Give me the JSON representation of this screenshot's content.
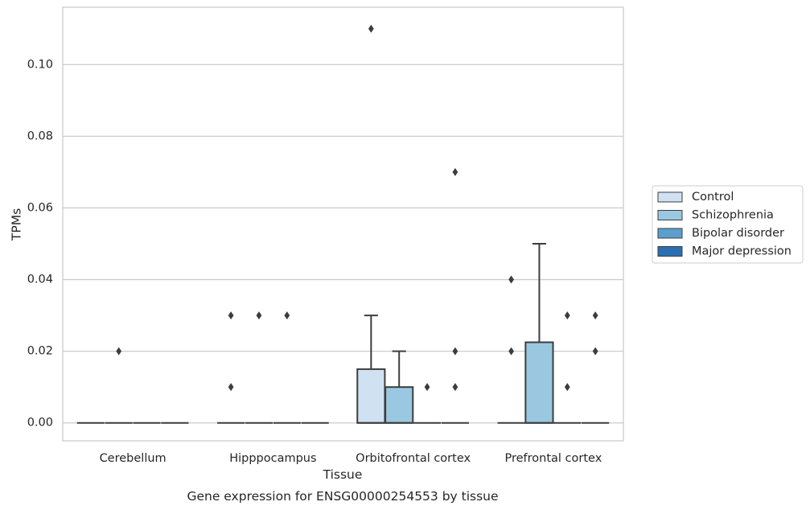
{
  "chart_data": {
    "type": "box",
    "title": "",
    "caption": "Gene expression for ENSG00000254553 by tissue",
    "xlabel": "Tissue",
    "ylabel": "TPMs",
    "ylim": [
      -0.005,
      0.116
    ],
    "yticks": [
      0.0,
      0.02,
      0.04,
      0.06,
      0.08,
      0.1
    ],
    "ytick_labels": [
      "0.00",
      "0.02",
      "0.04",
      "0.06",
      "0.08",
      "0.10"
    ],
    "grid": true,
    "legend_position": "right-outside",
    "categories": [
      "Cerebellum",
      "Hipppocampus",
      "Orbitofrontal cortex",
      "Prefrontal cortex"
    ],
    "series": [
      {
        "name": "Control",
        "color": "#d0e1f2",
        "boxes": [
          {
            "q1": 0,
            "median": 0,
            "q3": 0,
            "whisker_low": 0,
            "whisker_high": 0,
            "outliers": []
          },
          {
            "q1": 0,
            "median": 0,
            "q3": 0,
            "whisker_low": 0,
            "whisker_high": 0,
            "outliers": [
              0.03,
              0.01
            ]
          },
          {
            "q1": 0,
            "median": 0,
            "q3": 0.015,
            "whisker_low": 0,
            "whisker_high": 0.03,
            "outliers": [
              0.11
            ]
          },
          {
            "q1": 0,
            "median": 0,
            "q3": 0,
            "whisker_low": 0,
            "whisker_high": 0,
            "outliers": [
              0.04,
              0.02
            ]
          }
        ]
      },
      {
        "name": "Schizophrenia",
        "color": "#9ac8e0",
        "boxes": [
          {
            "q1": 0,
            "median": 0,
            "q3": 0,
            "whisker_low": 0,
            "whisker_high": 0,
            "outliers": [
              0.02
            ]
          },
          {
            "q1": 0,
            "median": 0,
            "q3": 0,
            "whisker_low": 0,
            "whisker_high": 0,
            "outliers": [
              0.03
            ]
          },
          {
            "q1": 0,
            "median": 0,
            "q3": 0.01,
            "whisker_low": 0,
            "whisker_high": 0.02,
            "outliers": []
          },
          {
            "q1": 0,
            "median": 0,
            "q3": 0.0225,
            "whisker_low": 0,
            "whisker_high": 0.05,
            "outliers": []
          }
        ]
      },
      {
        "name": "Bipolar disorder",
        "color": "#5a9fcd",
        "boxes": [
          {
            "q1": 0,
            "median": 0,
            "q3": 0,
            "whisker_low": 0,
            "whisker_high": 0,
            "outliers": []
          },
          {
            "q1": 0,
            "median": 0,
            "q3": 0,
            "whisker_low": 0,
            "whisker_high": 0,
            "outliers": [
              0.03
            ]
          },
          {
            "q1": 0,
            "median": 0,
            "q3": 0,
            "whisker_low": 0,
            "whisker_high": 0,
            "outliers": [
              0.01
            ]
          },
          {
            "q1": 0,
            "median": 0,
            "q3": 0,
            "whisker_low": 0,
            "whisker_high": 0,
            "outliers": [
              0.03,
              0.01
            ]
          }
        ]
      },
      {
        "name": "Major depression",
        "color": "#2a6fb2",
        "boxes": [
          {
            "q1": 0,
            "median": 0,
            "q3": 0,
            "whisker_low": 0,
            "whisker_high": 0,
            "outliers": []
          },
          {
            "q1": 0,
            "median": 0,
            "q3": 0,
            "whisker_low": 0,
            "whisker_high": 0,
            "outliers": []
          },
          {
            "q1": 0,
            "median": 0,
            "q3": 0,
            "whisker_low": 0,
            "whisker_high": 0,
            "outliers": [
              0.07,
              0.02,
              0.01
            ]
          },
          {
            "q1": 0,
            "median": 0,
            "q3": 0,
            "whisker_low": 0,
            "whisker_high": 0,
            "outliers": [
              0.03,
              0.02
            ]
          }
        ]
      }
    ]
  }
}
